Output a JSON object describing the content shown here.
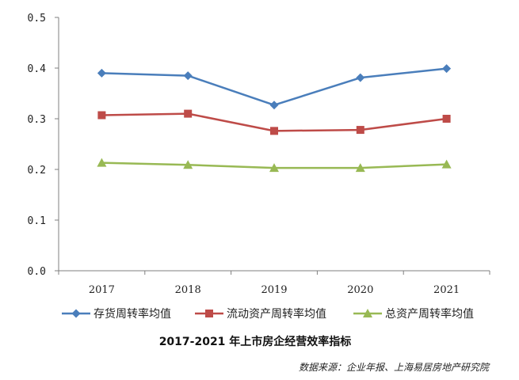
{
  "chart_data": {
    "type": "line",
    "title": "2017-2021 年上市房企经营效率指标",
    "source": "数据来源：企业年报、上海易居房地产研究院",
    "categories": [
      "2017",
      "2018",
      "2019",
      "2020",
      "2021"
    ],
    "ylim": [
      0,
      0.5
    ],
    "yticks": [
      "0.0",
      "0.1",
      "0.2",
      "0.3",
      "0.4",
      "0.5"
    ],
    "grid": false,
    "legend_position": "bottom",
    "series": [
      {
        "name": "存货周转率均值",
        "values": [
          0.39,
          0.385,
          0.327,
          0.381,
          0.399
        ],
        "color": "#4A7EBB",
        "marker": "diamond"
      },
      {
        "name": "流动资产周转率均值",
        "values": [
          0.307,
          0.31,
          0.276,
          0.278,
          0.3
        ],
        "color": "#BE4B48",
        "marker": "square"
      },
      {
        "name": "总资产周转率均值",
        "values": [
          0.213,
          0.209,
          0.203,
          0.203,
          0.21
        ],
        "color": "#98B954",
        "marker": "triangle"
      }
    ]
  }
}
